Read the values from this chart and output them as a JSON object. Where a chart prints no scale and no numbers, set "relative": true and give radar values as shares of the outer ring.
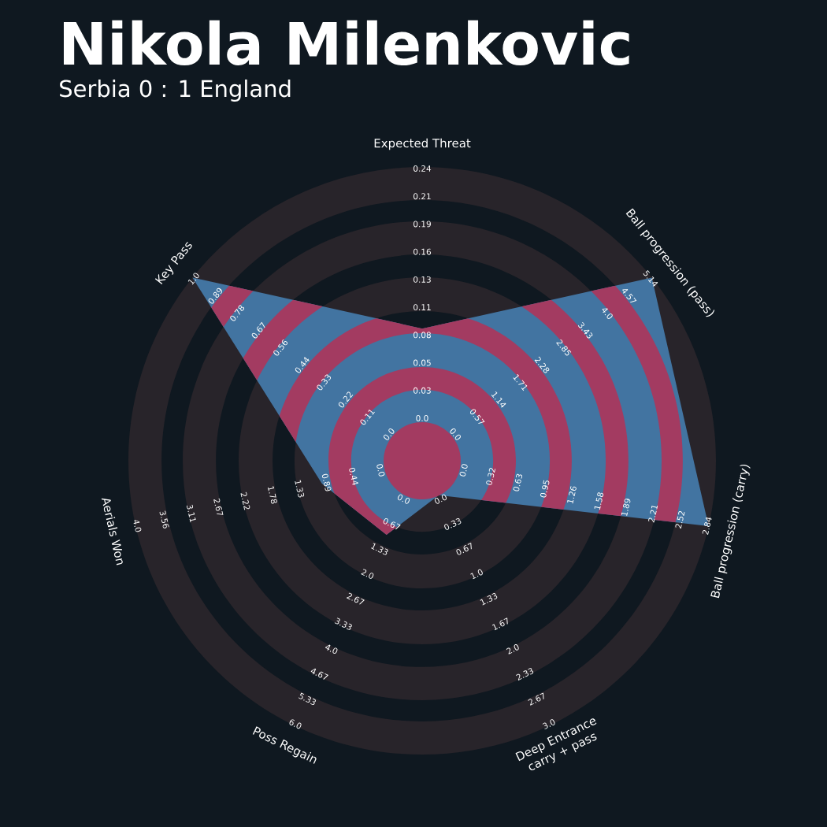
{
  "chart_data": {
    "type": "radar",
    "title": "Nikola Milenkovic",
    "subtitle": "Serbia 0 : 1 England",
    "relative": true,
    "categories": [
      "Expected Threat",
      "Ball progression (pass)",
      "Ball progression (carry)",
      "Deep Entrance carry + pass",
      "Poss Regain",
      "Aerials Won",
      "Key Pass"
    ],
    "series": [
      {
        "color": "#4274a1",
        "values": [
          0.45,
          1,
          1,
          0.13,
          0.28,
          0.35,
          1
        ]
      }
    ],
    "annotations": [
      "0.0",
      "0.03",
      "0.05",
      "0.08",
      "0.11",
      "0.13",
      "0.16",
      "0.19",
      "0.21",
      "0.24",
      "0.0",
      "0.57",
      "1.14",
      "1.71",
      "2.28",
      "2.85",
      "3.43",
      "4.0",
      "4.57",
      "5.14",
      "0.0",
      "0.32",
      "0.63",
      "0.95",
      "1.26",
      "1.58",
      "1.89",
      "2.21",
      "2.52",
      "2.84",
      "0.0",
      "0.33",
      "0.67",
      "1.0",
      "1.33",
      "1.67",
      "2.0",
      "2.33",
      "2.67",
      "3.0",
      "0.0",
      "0.67",
      "1.33",
      "2.0",
      "2.67",
      "3.33",
      "4.0",
      "4.67",
      "5.33",
      "6.0",
      "0.0",
      "0.44",
      "0.89",
      "1.33",
      "1.78",
      "2.22",
      "2.67",
      "3.11",
      "3.56",
      "4.0",
      "0.0",
      "0.11",
      "0.22",
      "0.33",
      "0.44",
      "0.56",
      "0.67",
      "0.78",
      "0.89",
      "1.0"
    ]
  }
}
